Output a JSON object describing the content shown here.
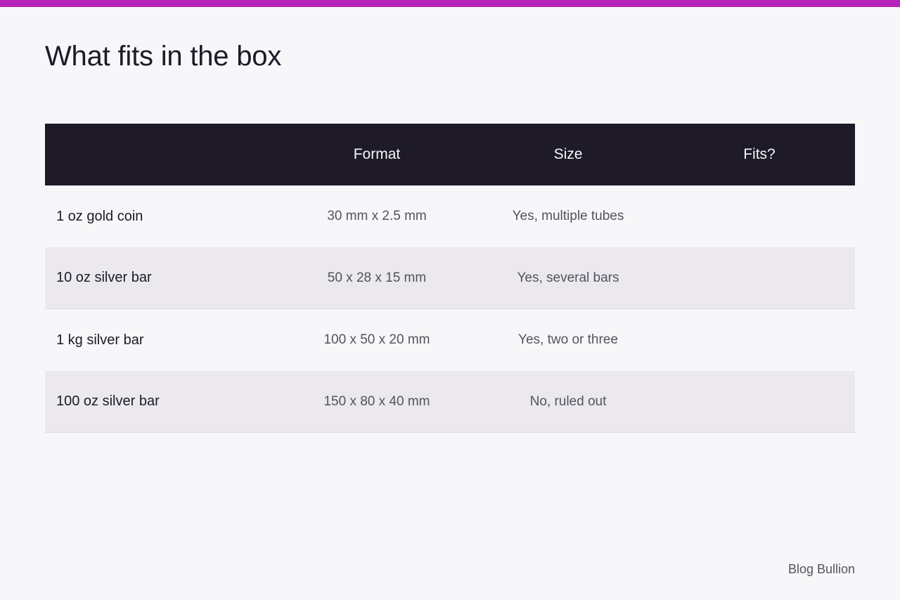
{
  "accent_color": "#b523b8",
  "title": "What fits in the box",
  "table": {
    "headers": [
      "",
      "Format",
      "Size",
      "Fits?"
    ],
    "rows": [
      {
        "name": "1 oz gold coin",
        "format": "30 mm x 2.5 mm",
        "size": "Yes, multiple tubes",
        "fits": ""
      },
      {
        "name": "10 oz silver bar",
        "format": "50 x 28 x 15 mm",
        "size": "Yes, several bars",
        "fits": ""
      },
      {
        "name": "1 kg silver bar",
        "format": "100 x 50 x 20 mm",
        "size": "Yes, two or three",
        "fits": ""
      },
      {
        "name": "100 oz silver bar",
        "format": "150 x 80 x 40 mm",
        "size": "No, ruled out",
        "fits": ""
      }
    ]
  },
  "footer": {
    "brand": "Blog Bullion"
  }
}
